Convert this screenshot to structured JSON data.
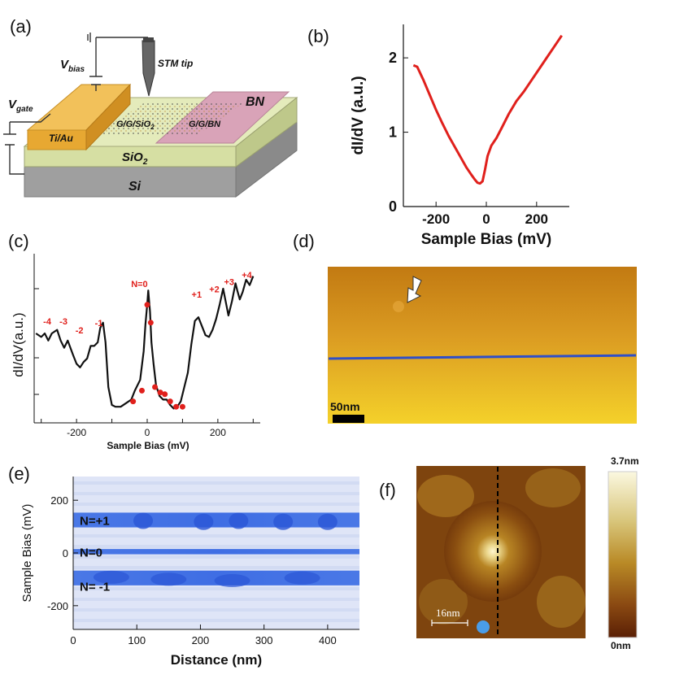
{
  "figure": {
    "panel_labels": [
      "(a)",
      "(b)",
      "(c)",
      "(d)",
      "(e)",
      "(f)"
    ],
    "colors": {
      "red": "#e0201c",
      "blue": "#2f55d4",
      "black": "#111111"
    }
  },
  "schematic": {
    "labels": {
      "vbias_main": "V",
      "vbias_sub": "bias",
      "vgate_main": "V",
      "vgate_sub": "gate",
      "stm_tip": "STM tip",
      "bn": "BN",
      "tiau": "Ti/Au",
      "ggsio2_main": "G/G/SiO",
      "ggsio2_sub": "2",
      "ggbn": "G/G/BN",
      "sio2_main": "SiO",
      "sio2_sub": "2",
      "si": "Si"
    }
  },
  "chart_data": [
    {
      "panel": "b",
      "type": "line",
      "title": "",
      "xlabel": "Sample Bias (mV)",
      "ylabel": "dI/dV (a.u.)",
      "xlim": [
        -330,
        330
      ],
      "ylim": [
        0,
        2.45
      ],
      "xticks": [
        -200,
        0,
        200
      ],
      "xtick_labels": [
        "-200",
        "0",
        "200"
      ],
      "yticks": [
        0,
        1,
        2
      ],
      "ytick_labels": [
        "0",
        "1",
        "2"
      ],
      "series": [
        {
          "name": "dI/dV",
          "x": [
            -290,
            -275,
            -250,
            -225,
            -200,
            -175,
            -150,
            -125,
            -100,
            -80,
            -60,
            -45,
            -35,
            -25,
            -15,
            -5,
            5,
            20,
            40,
            60,
            90,
            120,
            150,
            180,
            210,
            240,
            270,
            300
          ],
          "y": [
            1.9,
            1.88,
            1.7,
            1.5,
            1.3,
            1.12,
            0.95,
            0.8,
            0.65,
            0.53,
            0.43,
            0.36,
            0.32,
            0.31,
            0.34,
            0.5,
            0.68,
            0.82,
            0.92,
            1.05,
            1.25,
            1.42,
            1.55,
            1.7,
            1.85,
            2.0,
            2.15,
            2.3
          ]
        }
      ]
    },
    {
      "panel": "c",
      "type": "line",
      "title": "",
      "xlabel": "Sample Bias (mV)",
      "ylabel": "dI/dV(a.u.)",
      "xlim": [
        -320,
        320
      ],
      "ylim": [
        0,
        1
      ],
      "xticks": [
        -200,
        0,
        200
      ],
      "xtick_labels": [
        "-200",
        "0",
        "200"
      ],
      "series": [
        {
          "name": "dI/dV",
          "x": [
            -315,
            -300,
            -290,
            -280,
            -270,
            -255,
            -245,
            -235,
            -225,
            -210,
            -200,
            -190,
            -180,
            -170,
            -160,
            -150,
            -140,
            -133,
            -125,
            -118,
            -110,
            -100,
            -90,
            -75,
            -60,
            -45,
            -35,
            -20,
            -10,
            -5,
            0,
            3,
            8,
            12,
            18,
            25,
            35,
            45,
            55,
            65,
            75,
            85,
            95,
            105,
            115,
            125,
            135,
            145,
            155,
            165,
            175,
            185,
            195,
            205,
            215,
            220,
            230,
            240,
            250,
            255,
            262,
            270,
            280,
            290,
            300
          ],
          "y": [
            0.5,
            0.48,
            0.5,
            0.46,
            0.5,
            0.52,
            0.46,
            0.42,
            0.46,
            0.38,
            0.33,
            0.31,
            0.34,
            0.36,
            0.43,
            0.43,
            0.45,
            0.53,
            0.56,
            0.45,
            0.2,
            0.1,
            0.09,
            0.09,
            0.11,
            0.13,
            0.18,
            0.24,
            0.4,
            0.55,
            0.66,
            0.74,
            0.62,
            0.45,
            0.33,
            0.21,
            0.15,
            0.13,
            0.13,
            0.1,
            0.08,
            0.09,
            0.12,
            0.2,
            0.28,
            0.44,
            0.57,
            0.59,
            0.54,
            0.49,
            0.48,
            0.52,
            0.58,
            0.66,
            0.75,
            0.7,
            0.6,
            0.68,
            0.78,
            0.74,
            0.69,
            0.73,
            0.8,
            0.77,
            0.82
          ]
        }
      ],
      "marked_points": {
        "x": [
          -40,
          -15,
          0,
          10,
          22,
          37,
          50,
          65,
          82,
          100
        ],
        "y": [
          0.12,
          0.18,
          0.66,
          0.56,
          0.2,
          0.17,
          0.16,
          0.12,
          0.09,
          0.09
        ]
      },
      "annotations": [
        {
          "text": "-4",
          "x": -283,
          "y": 0.55
        },
        {
          "text": "-3",
          "x": -237,
          "y": 0.55
        },
        {
          "text": "-2",
          "x": -192,
          "y": 0.5
        },
        {
          "text": "-1",
          "x": -137,
          "y": 0.54
        },
        {
          "text": "N=0",
          "x": -22,
          "y": 0.76
        },
        {
          "text": "+1",
          "x": 140,
          "y": 0.7
        },
        {
          "text": "+2",
          "x": 190,
          "y": 0.73
        },
        {
          "text": "+3",
          "x": 232,
          "y": 0.77
        },
        {
          "text": "+4",
          "x": 282,
          "y": 0.81
        }
      ]
    },
    {
      "panel": "d",
      "type": "heatmap",
      "title": "",
      "scalebar": "50nm",
      "line_profile": "blue horizontal line across image",
      "arrow": "white arrow pointing to a bump"
    },
    {
      "panel": "e",
      "type": "heatmap",
      "title": "",
      "xlabel": "Distance (nm)",
      "ylabel": "Sample Bias (mV)",
      "xlim": [
        0,
        450
      ],
      "ylim": [
        -290,
        290
      ],
      "xticks": [
        0,
        100,
        200,
        300,
        400
      ],
      "xtick_labels": [
        "0",
        "100",
        "200",
        "300",
        "400"
      ],
      "yticks": [
        -200,
        0,
        200
      ],
      "ytick_labels": [
        "-200",
        "0",
        "200"
      ],
      "band_labels": [
        {
          "text": "N=+1",
          "y": 125
        },
        {
          "text": "N=0",
          "y": 5
        },
        {
          "text": "N= -1",
          "y": -125
        }
      ],
      "bands_mv": [
        {
          "center": 125,
          "half_width": 28
        },
        {
          "center": 5,
          "half_width": 10
        },
        {
          "center": -95,
          "half_width": 28
        }
      ]
    },
    {
      "panel": "f",
      "type": "heatmap",
      "title": "",
      "scalebar": "16nm",
      "colorbar": {
        "max_label": "3.7nm",
        "min_label": "0nm"
      }
    }
  ]
}
